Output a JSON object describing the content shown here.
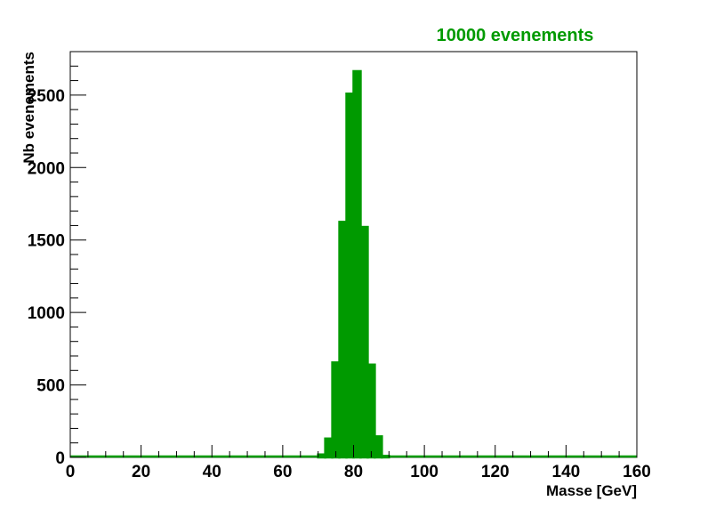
{
  "chart_data": {
    "type": "bar",
    "title": "10000 evenements",
    "xlabel": "Masse [GeV]",
    "ylabel": "Nb evenements",
    "xlim": [
      0,
      160
    ],
    "ylim": [
      0,
      2800
    ],
    "bin_width": 2,
    "bins": [
      {
        "x": 70,
        "value": 20
      },
      {
        "x": 72,
        "value": 130
      },
      {
        "x": 74,
        "value": 655
      },
      {
        "x": 76,
        "value": 1625
      },
      {
        "x": 78,
        "value": 2510
      },
      {
        "x": 80,
        "value": 2665
      },
      {
        "x": 82,
        "value": 1590
      },
      {
        "x": 84,
        "value": 640
      },
      {
        "x": 86,
        "value": 145
      },
      {
        "x": 88,
        "value": 10
      }
    ],
    "x_ticks": [
      0,
      20,
      40,
      60,
      80,
      100,
      120,
      140,
      160
    ],
    "y_ticks": [
      0,
      500,
      1000,
      1500,
      2000,
      2500
    ],
    "grid": false,
    "color": "#009a00"
  }
}
